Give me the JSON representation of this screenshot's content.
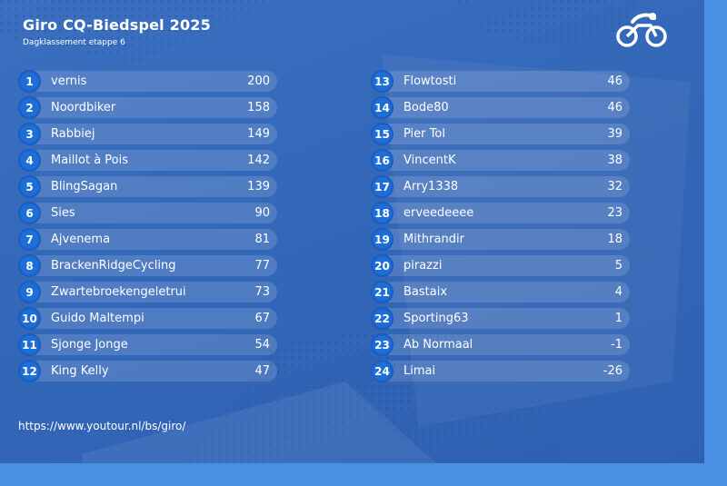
{
  "header": {
    "title": "Giro CQ-Biedspel 2025",
    "subtitle": "Dagklassement etappe 6",
    "logo_icon": "cyclist-logo-icon"
  },
  "standings_left": [
    {
      "rank": "1",
      "name": "vernis",
      "score": "200"
    },
    {
      "rank": "2",
      "name": "Noordbiker",
      "score": "158"
    },
    {
      "rank": "3",
      "name": "Rabbiej",
      "score": "149"
    },
    {
      "rank": "4",
      "name": "Maillot à Pois",
      "score": "142"
    },
    {
      "rank": "5",
      "name": "BlingSagan",
      "score": "139"
    },
    {
      "rank": "6",
      "name": "Sies",
      "score": "90"
    },
    {
      "rank": "7",
      "name": "Ajvenema",
      "score": "81"
    },
    {
      "rank": "8",
      "name": "BrackenRidgeCycling",
      "score": "77"
    },
    {
      "rank": "9",
      "name": "Zwartebroekengeletrui",
      "score": "73"
    },
    {
      "rank": "10",
      "name": "Guido Maltempi",
      "score": "67"
    },
    {
      "rank": "11",
      "name": "Sjonge Jonge",
      "score": "54"
    },
    {
      "rank": "12",
      "name": "King Kelly",
      "score": "47"
    }
  ],
  "standings_right": [
    {
      "rank": "13",
      "name": "Flowtosti",
      "score": "46"
    },
    {
      "rank": "14",
      "name": "Bode80",
      "score": "46"
    },
    {
      "rank": "15",
      "name": "Pier Tol",
      "score": "39"
    },
    {
      "rank": "16",
      "name": "VincentK",
      "score": "38"
    },
    {
      "rank": "17",
      "name": "Arry1338",
      "score": "32"
    },
    {
      "rank": "18",
      "name": "erveedeeee",
      "score": "23"
    },
    {
      "rank": "19",
      "name": "Mithrandir",
      "score": "18"
    },
    {
      "rank": "20",
      "name": "pirazzi",
      "score": "5"
    },
    {
      "rank": "21",
      "name": "Bastaix",
      "score": "4"
    },
    {
      "rank": "22",
      "name": "Sporting63",
      "score": "1"
    },
    {
      "rank": "23",
      "name": "Ab Normaal",
      "score": "-1"
    },
    {
      "rank": "24",
      "name": "Limai",
      "score": "-26"
    }
  ],
  "footer": {
    "url": "https://www.youtour.nl/bs/giro/"
  },
  "colors": {
    "background": "#3367b8",
    "outer_background": "#4a90e2",
    "rank_badge": "#1e6ed8",
    "row_bar": "rgba(255,255,255,0.14)",
    "text": "#ffffff"
  }
}
